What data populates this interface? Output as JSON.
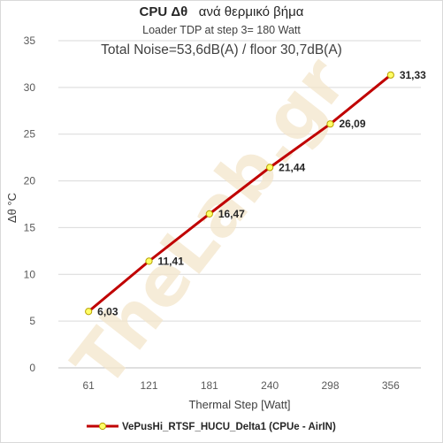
{
  "chart_data": {
    "type": "line",
    "title_bold": "CPU  Δθ",
    "title_rest": "ανά θερμικό βήμα",
    "subtitle": "Loader TDP at step 3= 180 Watt",
    "annotation": "Total Noise=53,6dB(A) / floor 30,7dB(A)",
    "xlabel": "Thermal Step [Watt]",
    "ylabel": "Δθ °C",
    "categories": [
      "61",
      "121",
      "181",
      "240",
      "298",
      "356"
    ],
    "series": [
      {
        "name": "VePusHi_RTSF_HUCU_Delta1 (CPUe - AirIN)",
        "values": [
          6.03,
          11.41,
          16.47,
          21.44,
          26.09,
          31.33
        ],
        "labels": [
          "6,03",
          "11,41",
          "16,47",
          "21,44",
          "26,09",
          "31,33"
        ],
        "line_color": "#c00000",
        "marker_fill": "#ffff66",
        "marker_stroke": "#b8a000"
      }
    ],
    "ylim": [
      0,
      35
    ],
    "yticks": [
      "0",
      "5",
      "10",
      "15",
      "20",
      "25",
      "30",
      "35"
    ],
    "grid": true,
    "legend_position": "bottom",
    "watermark": "TheLab.gr"
  }
}
